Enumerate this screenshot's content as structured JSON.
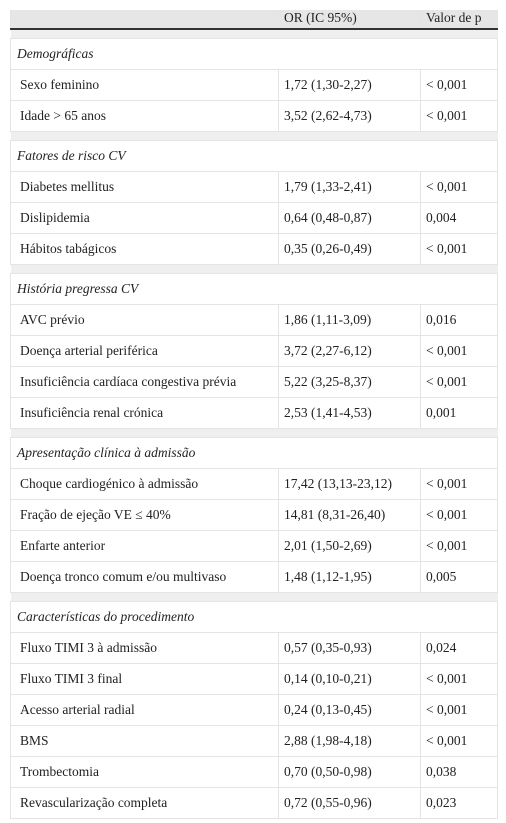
{
  "header": [
    "",
    "OR (IC 95%)",
    "Valor de p"
  ],
  "sections": [
    {
      "title": "Demográficas",
      "rows": [
        [
          "Sexo feminino",
          "1,72 (1,30-2,27)",
          "< 0,001"
        ],
        [
          "Idade > 65 anos",
          "3,52 (2,62-4,73)",
          "< 0,001"
        ]
      ]
    },
    {
      "title": "Fatores de risco CV",
      "rows": [
        [
          "Diabetes mellitus",
          "1,79 (1,33-2,41)",
          "< 0,001"
        ],
        [
          "Dislipidemia",
          "0,64 (0,48-0,87)",
          "0,004"
        ],
        [
          "Hábitos tabágicos",
          "0,35 (0,26-0,49)",
          "< 0,001"
        ]
      ]
    },
    {
      "title": "História pregressa CV",
      "rows": [
        [
          "AVC prévio",
          "1,86 (1,11-3,09)",
          "0,016"
        ],
        [
          "Doença arterial periférica",
          "3,72 (2,27-6,12)",
          "< 0,001"
        ],
        [
          "Insuficiência cardíaca congestiva prévia",
          "5,22 (3,25-8,37)",
          "< 0,001"
        ],
        [
          "Insuficiência renal crónica",
          "2,53 (1,41-4,53)",
          "0,001"
        ]
      ]
    },
    {
      "title": "Apresentação clínica à admissão",
      "rows": [
        [
          "Choque cardiogénico à admissão",
          "17,42 (13,13-23,12)",
          "< 0,001"
        ],
        [
          "Fração de ejeção VE ≤ 40%",
          "14,81 (8,31-26,40)",
          "< 0,001"
        ],
        [
          "Enfarte anterior",
          "2,01 (1,50-2,69)",
          "< 0,001"
        ],
        [
          "Doença tronco comum e/ou multivaso",
          "1,48 (1,12-1,95)",
          "0,005"
        ]
      ]
    },
    {
      "title": "Características do procedimento",
      "rows": [
        [
          "Fluxo TIMI 3 à admissão",
          "0,57 (0,35-0,93)",
          "0,024"
        ],
        [
          "Fluxo TIMI 3 final",
          "0,14 (0,10-0,21)",
          "< 0,001"
        ],
        [
          "Acesso arterial radial",
          "0,24 (0,13-0,45)",
          "< 0,001"
        ],
        [
          "BMS",
          "2,88 (1,98-4,18)",
          "< 0,001"
        ],
        [
          "Trombectomia",
          "0,70 (0,50-0,98)",
          "0,038"
        ],
        [
          "Revascularização completa",
          "0,72 (0,55-0,96)",
          "0,023"
        ]
      ]
    }
  ]
}
